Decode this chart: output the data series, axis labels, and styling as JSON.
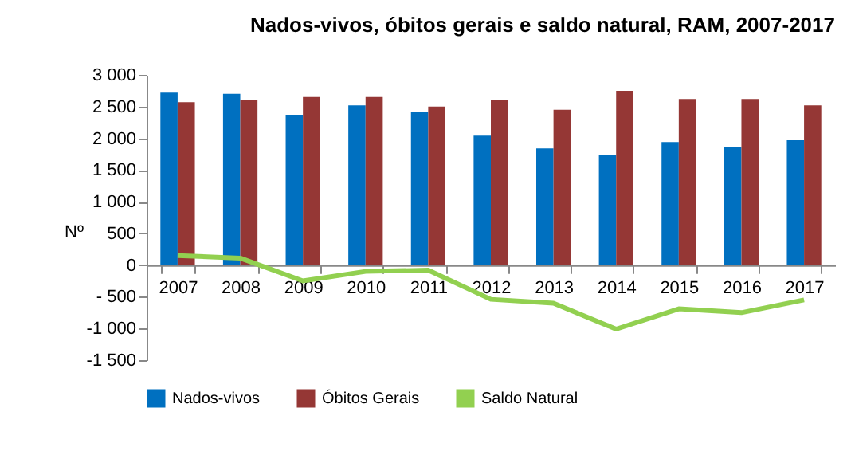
{
  "chart_data": {
    "type": "bar",
    "title": "Nados-vivos, óbitos gerais e saldo natural, RAM, 2007-2017",
    "ylabel": "Nº",
    "categories": [
      "2007",
      "2008",
      "2009",
      "2010",
      "2011",
      "2012",
      "2013",
      "2014",
      "2015",
      "2016",
      "2017"
    ],
    "series": [
      {
        "name": "Nados-vivos",
        "color": "#0070c0",
        "values": [
          2720,
          2700,
          2370,
          2520,
          2420,
          2040,
          1840,
          1740,
          1940,
          1870,
          1970
        ]
      },
      {
        "name": "Óbitos Gerais",
        "color": "#953735",
        "values": [
          2570,
          2600,
          2650,
          2650,
          2500,
          2600,
          2450,
          2750,
          2620,
          2620,
          2520
        ]
      },
      {
        "name": "Saldo Natural",
        "color": "#92d050",
        "type": "line",
        "values": [
          150,
          110,
          -250,
          -100,
          -80,
          -540,
          -600,
          -1010,
          -690,
          -750,
          -550
        ]
      }
    ],
    "ylim": [
      -1500,
      3000
    ],
    "yticks": [
      {
        "value": -1500,
        "label": "-1 500"
      },
      {
        "value": -1000,
        "label": "-1 000"
      },
      {
        "value": -500,
        "label": "- 500"
      },
      0,
      500,
      {
        "value": 1000,
        "label": "1 000"
      },
      {
        "value": 1500,
        "label": "1 500"
      },
      {
        "value": 2000,
        "label": "2 000"
      },
      {
        "value": 2500,
        "label": "2 500"
      },
      {
        "value": 3000,
        "label": "3 000"
      }
    ],
    "grid": false,
    "legend": "bottom"
  }
}
